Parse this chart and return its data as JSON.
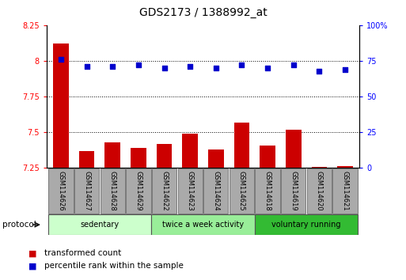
{
  "title": "GDS2173 / 1388992_at",
  "categories": [
    "GSM114626",
    "GSM114627",
    "GSM114628",
    "GSM114629",
    "GSM114622",
    "GSM114623",
    "GSM114624",
    "GSM114625",
    "GSM114618",
    "GSM114619",
    "GSM114620",
    "GSM114621"
  ],
  "bar_values": [
    8.12,
    7.37,
    7.43,
    7.39,
    7.42,
    7.49,
    7.38,
    7.57,
    7.41,
    7.52,
    7.26,
    7.265
  ],
  "scatter_values": [
    76,
    71,
    71,
    72,
    70,
    71,
    70,
    72,
    70,
    72,
    68,
    69
  ],
  "bar_color": "#cc0000",
  "scatter_color": "#0000cc",
  "ylim_left": [
    7.25,
    8.25
  ],
  "ylim_right": [
    0,
    100
  ],
  "yticks_left": [
    7.25,
    7.5,
    7.75,
    8.0,
    8.25
  ],
  "ytick_labels_left": [
    "7.25",
    "7.5",
    "7.75",
    "8",
    "8.25"
  ],
  "yticks_right": [
    0,
    25,
    50,
    75,
    100
  ],
  "ytick_labels_right": [
    "0",
    "25",
    "50",
    "75",
    "100%"
  ],
  "grid_lines": [
    8.0,
    7.75,
    7.5
  ],
  "groups": [
    {
      "label": "sedentary",
      "start": 0,
      "end": 4,
      "color": "#ccffcc"
    },
    {
      "label": "twice a week activity",
      "start": 4,
      "end": 8,
      "color": "#99ee99"
    },
    {
      "label": "voluntary running",
      "start": 8,
      "end": 12,
      "color": "#33bb33"
    }
  ],
  "protocol_label": "protocol",
  "legend_bar_label": "transformed count",
  "legend_scatter_label": "percentile rank within the sample",
  "bg_color": "#ffffff",
  "tick_label_bg": "#aaaaaa"
}
